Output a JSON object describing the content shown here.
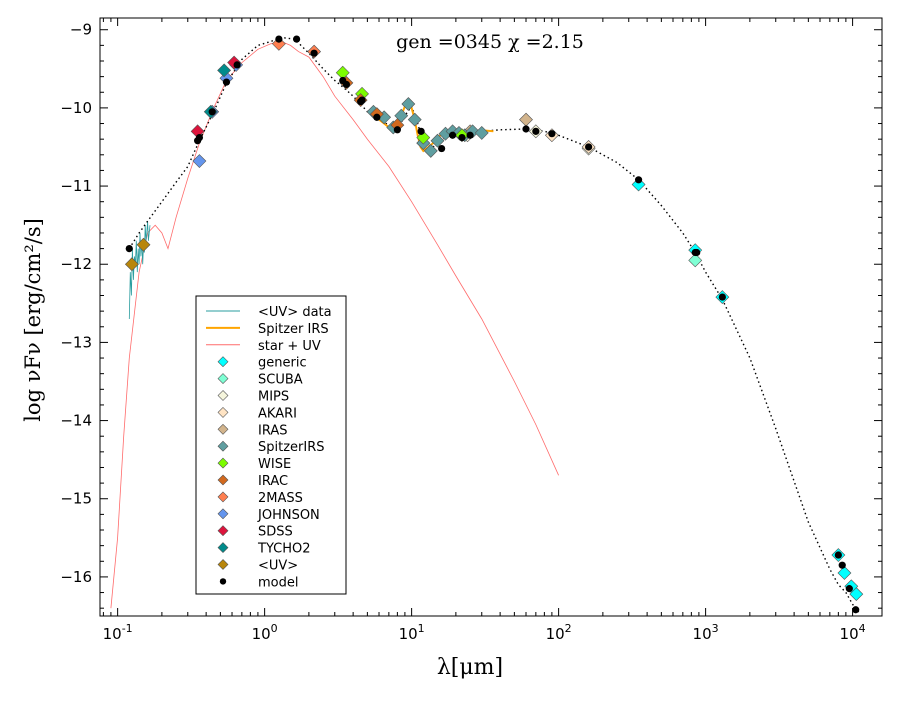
{
  "chart_data": {
    "type": "scatter",
    "title": "gen =0345  χ =2.15",
    "xlabel": "λ[μm]",
    "ylabel": "log νFν [erg/cm²/s]",
    "x_scale": "log",
    "xlim_log10": [
      -1.12,
      4.2
    ],
    "ylim": [
      -16.5,
      -8.85
    ],
    "x_tick_labels": [
      "10",
      "10",
      "10",
      "10",
      "10",
      "10"
    ],
    "x_tick_exponents": [
      "-1",
      "0",
      "1",
      "2",
      "3",
      "4"
    ],
    "y_tick_labels": [
      "−9",
      "−10",
      "−11",
      "−12",
      "−13",
      "−14",
      "−15",
      "−16"
    ],
    "legend": {
      "position": "lower-left",
      "entries": [
        {
          "label": "<UV> data",
          "kind": "line",
          "color": "#2a9d9f"
        },
        {
          "label": "Spitzer IRS",
          "kind": "line",
          "color": "#ffa500"
        },
        {
          "label": "star + UV",
          "kind": "line",
          "color": "#ff6b6b"
        },
        {
          "label": "generic",
          "kind": "diamond",
          "color": "#00ffff"
        },
        {
          "label": "SCUBA",
          "kind": "diamond",
          "color": "#7fffd4"
        },
        {
          "label": "MIPS",
          "kind": "diamond",
          "color": "#f5f5dc"
        },
        {
          "label": "AKARI",
          "kind": "diamond",
          "color": "#ffe4c4"
        },
        {
          "label": "IRAS",
          "kind": "diamond",
          "color": "#d2b48c"
        },
        {
          "label": "SpitzerIRS",
          "kind": "diamond",
          "color": "#5f9ea0"
        },
        {
          "label": "WISE",
          "kind": "diamond",
          "color": "#7cfc00"
        },
        {
          "label": "IRAC",
          "kind": "diamond",
          "color": "#d2691e"
        },
        {
          "label": "2MASS",
          "kind": "diamond",
          "color": "#ff7f50"
        },
        {
          "label": "JOHNSON",
          "kind": "diamond",
          "color": "#6495ed"
        },
        {
          "label": "SDSS",
          "kind": "diamond",
          "color": "#dc143c"
        },
        {
          "label": "TYCHO2",
          "kind": "diamond",
          "color": "#008b8b"
        },
        {
          "label": "<UV>",
          "kind": "diamond",
          "color": "#b8860b"
        },
        {
          "label": "model",
          "kind": "dot",
          "color": "#000000"
        }
      ]
    },
    "series": [
      {
        "name": "star + UV",
        "style": "line",
        "color": "#ff6b6b",
        "x": [
          0.09,
          0.1,
          0.11,
          0.12,
          0.14,
          0.16,
          0.18,
          0.2,
          0.22,
          0.25,
          0.3,
          0.36,
          0.45,
          0.55,
          0.7,
          0.9,
          1.1,
          1.3,
          1.5,
          1.7,
          2.0,
          2.5,
          3.0,
          4.0,
          5.0,
          7.0,
          10.0,
          15.0,
          20.0,
          30.0,
          50.0,
          70.0,
          100.0
        ],
        "y": [
          -16.4,
          -15.5,
          -14.2,
          -13.2,
          -12.1,
          -11.6,
          -11.5,
          -11.6,
          -11.8,
          -11.4,
          -10.9,
          -10.45,
          -10.0,
          -9.65,
          -9.42,
          -9.25,
          -9.18,
          -9.15,
          -9.2,
          -9.28,
          -9.35,
          -9.6,
          -9.85,
          -10.15,
          -10.4,
          -10.75,
          -11.2,
          -11.75,
          -12.15,
          -12.7,
          -13.5,
          -14.05,
          -14.7
        ]
      },
      {
        "name": "<UV> data",
        "style": "line",
        "color": "#2a9d9f",
        "x": [
          0.12,
          0.122,
          0.124,
          0.126,
          0.128,
          0.13,
          0.132,
          0.134,
          0.136,
          0.138,
          0.14,
          0.142,
          0.144,
          0.146,
          0.148,
          0.15,
          0.152,
          0.154,
          0.156,
          0.158,
          0.16,
          0.162,
          0.164,
          0.166
        ],
        "y": [
          -12.7,
          -12.1,
          -12.4,
          -11.8,
          -12.2,
          -11.9,
          -12.0,
          -11.7,
          -12.1,
          -11.8,
          -12.0,
          -11.6,
          -11.9,
          -11.7,
          -12.0,
          -11.75,
          -11.85,
          -11.5,
          -11.7,
          -11.6,
          -11.45,
          -11.7,
          -11.6,
          -11.5
        ]
      },
      {
        "name": "Spitzer IRS",
        "style": "line",
        "color": "#ffa500",
        "x": [
          5.2,
          5.6,
          6.0,
          6.5,
          7.0,
          7.5,
          8.0,
          8.5,
          9.0,
          9.5,
          10.0,
          10.5,
          11.0,
          11.5,
          12.0,
          13.0,
          14.0,
          15.0,
          16.0,
          18.0,
          20.0,
          22.0,
          25.0,
          28.0,
          32.0,
          36.0
        ],
        "y": [
          -10.05,
          -10.1,
          -10.15,
          -10.2,
          -10.25,
          -10.28,
          -10.25,
          -10.1,
          -9.98,
          -9.95,
          -10.0,
          -10.15,
          -10.35,
          -10.5,
          -10.55,
          -10.5,
          -10.45,
          -10.38,
          -10.34,
          -10.32,
          -10.3,
          -10.3,
          -10.28,
          -10.3,
          -10.29,
          -10.3
        ]
      },
      {
        "name": "model",
        "style": "dotted-line",
        "color": "#000000",
        "x": [
          0.12,
          0.14,
          0.16,
          0.2,
          0.25,
          0.3,
          0.36,
          0.45,
          0.55,
          0.7,
          0.9,
          1.1,
          1.3,
          1.6,
          2.0,
          2.5,
          3.0,
          3.5,
          4.0,
          4.5,
          5.0,
          5.5,
          6.0,
          7.0,
          8.0,
          9.0,
          10.0,
          11.0,
          12.0,
          14.0,
          16.0,
          20.0,
          25.0,
          30.0,
          40.0,
          60.0,
          80.0,
          100.0,
          160.0,
          250.0,
          350.0,
          500.0,
          700.0,
          850.0,
          1000.0,
          1300.0,
          2000.0,
          3000.0,
          5000.0,
          7000.0,
          8000.0,
          9000.0,
          10000.0,
          11000.0
        ],
        "y": [
          -11.8,
          -11.6,
          -11.45,
          -11.2,
          -10.95,
          -10.75,
          -10.42,
          -10.05,
          -9.68,
          -9.38,
          -9.2,
          -9.15,
          -9.1,
          -9.12,
          -9.3,
          -9.5,
          -9.65,
          -9.75,
          -9.85,
          -9.95,
          -10.05,
          -10.1,
          -10.15,
          -10.22,
          -10.28,
          -10.1,
          -9.98,
          -10.2,
          -10.45,
          -10.5,
          -10.4,
          -10.33,
          -10.32,
          -10.3,
          -10.28,
          -10.27,
          -10.3,
          -10.35,
          -10.5,
          -10.7,
          -10.92,
          -11.25,
          -11.6,
          -11.85,
          -12.1,
          -12.45,
          -13.2,
          -14.1,
          -15.3,
          -15.9,
          -16.1,
          -16.2,
          -16.35,
          -16.45
        ]
      },
      {
        "name": "model points",
        "style": "dots",
        "color": "#000000",
        "x": [
          0.12,
          0.35,
          0.36,
          0.44,
          0.55,
          0.65,
          1.25,
          1.65,
          2.17,
          3.4,
          3.6,
          4.5,
          4.6,
          5.8,
          8.0,
          11.6,
          16.0,
          19.0,
          22.0,
          25.0,
          60.0,
          70.0,
          90.0,
          160.0,
          350.0,
          850.0,
          870.0,
          1300.0,
          8000.0,
          8500.0,
          9500.0,
          10500.0
        ],
        "y": [
          -11.8,
          -10.42,
          -10.38,
          -10.05,
          -9.67,
          -9.45,
          -9.12,
          -9.12,
          -9.3,
          -9.65,
          -9.7,
          -9.92,
          -9.9,
          -10.12,
          -10.28,
          -10.3,
          -10.52,
          -10.35,
          -10.38,
          -10.35,
          -10.27,
          -10.3,
          -10.33,
          -10.5,
          -10.92,
          -11.85,
          -11.85,
          -12.42,
          -15.72,
          -15.85,
          -16.15,
          -16.42
        ]
      },
      {
        "name": "generic",
        "style": "diamonds",
        "color": "#00ffff",
        "x": [
          350.0,
          850.0,
          1300.0,
          8000.0,
          8800.0,
          9800.0,
          10600.0
        ],
        "y": [
          -10.98,
          -11.82,
          -12.42,
          -15.72,
          -15.95,
          -16.12,
          -16.22
        ]
      },
      {
        "name": "SCUBA",
        "style": "diamonds",
        "color": "#7fffd4",
        "x": [
          850.0
        ],
        "y": [
          -11.95
        ]
      },
      {
        "name": "MIPS",
        "style": "diamonds",
        "color": "#f5f5dc",
        "x": [
          24.0,
          70.0,
          160.0
        ],
        "y": [
          -10.35,
          -10.3,
          -10.52
        ]
      },
      {
        "name": "AKARI",
        "style": "diamonds",
        "color": "#ffe4c4",
        "x": [
          90.0,
          160.0
        ],
        "y": [
          -10.35,
          -10.5
        ]
      },
      {
        "name": "IRAS",
        "style": "diamonds",
        "color": "#d2b48c",
        "x": [
          12.0,
          25.0,
          60.0
        ],
        "y": [
          -10.45,
          -10.3,
          -10.15
        ]
      },
      {
        "name": "SpitzerIRS",
        "style": "diamonds",
        "color": "#5f9ea0",
        "x": [
          5.5,
          6.5,
          7.5,
          8.5,
          9.5,
          10.5,
          12.0,
          13.5,
          15.0,
          17.0,
          19.0,
          21.0,
          23.0,
          26.0,
          30.0
        ],
        "y": [
          -10.05,
          -10.12,
          -10.25,
          -10.1,
          -9.95,
          -10.15,
          -10.45,
          -10.55,
          -10.42,
          -10.33,
          -10.3,
          -10.32,
          -10.35,
          -10.3,
          -10.32
        ]
      },
      {
        "name": "WISE",
        "style": "diamonds",
        "color": "#7cfc00",
        "x": [
          3.4,
          4.6,
          12.0,
          22.0
        ],
        "y": [
          -9.55,
          -9.82,
          -10.38,
          -10.35
        ]
      },
      {
        "name": "IRAC",
        "style": "diamonds",
        "color": "#d2691e",
        "x": [
          3.6,
          4.5,
          5.8,
          8.0
        ],
        "y": [
          -9.68,
          -9.9,
          -10.08,
          -10.22
        ]
      },
      {
        "name": "2MASS",
        "style": "diamonds",
        "color": "#ff7f50",
        "x": [
          1.25,
          2.17
        ],
        "y": [
          -9.18,
          -9.28
        ]
      },
      {
        "name": "JOHNSON",
        "style": "diamonds",
        "color": "#6495ed",
        "x": [
          0.36,
          0.44,
          0.55,
          0.64
        ],
        "y": [
          -10.68,
          -10.05,
          -9.62,
          -9.45
        ]
      },
      {
        "name": "SDSS",
        "style": "diamonds",
        "color": "#dc143c",
        "x": [
          0.35,
          0.62
        ],
        "y": [
          -10.3,
          -9.42
        ]
      },
      {
        "name": "TYCHO2",
        "style": "diamonds",
        "color": "#008b8b",
        "x": [
          0.43,
          0.53
        ],
        "y": [
          -10.05,
          -9.52
        ]
      },
      {
        "name": "<UV>",
        "style": "diamonds",
        "color": "#b8860b",
        "x": [
          0.125,
          0.15
        ],
        "y": [
          -12.0,
          -11.75
        ]
      }
    ]
  }
}
